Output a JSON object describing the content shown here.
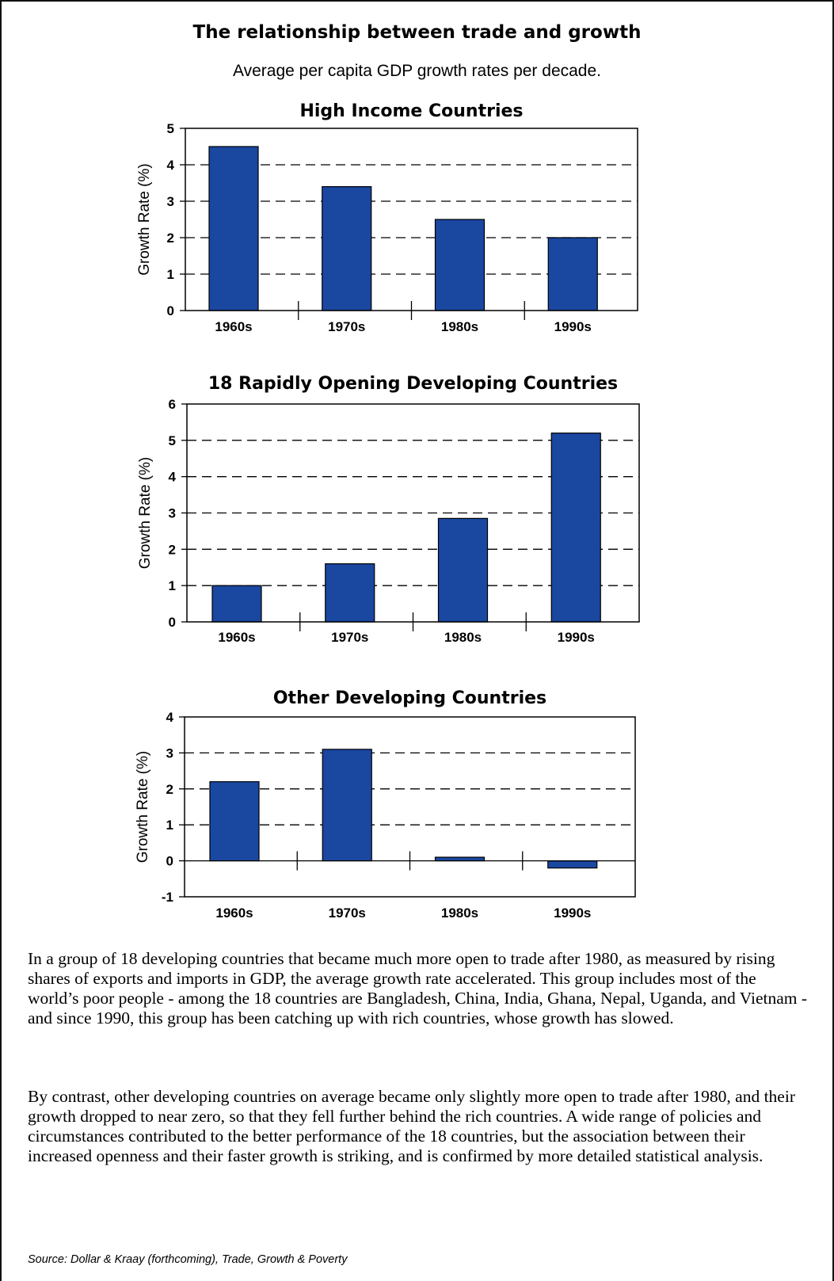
{
  "page": {
    "title": "The relationship between trade and growth",
    "subtitle": "Average per capita GDP growth rates per decade.",
    "paragraphs": [
      "In a group of 18 developing countries that became much more open to trade after 1980, as measured by rising shares of exports and imports in GDP, the average growth rate accelerated. This group includes most of the world’s poor people - among the 18 countries are Bangladesh, China, India, Ghana, Nepal, Uganda, and Vietnam - and since 1990, this group has been catching up with rich countries, whose growth has slowed.",
      "By contrast, other developing countries on average became only slightly more open to trade after 1980, and their growth dropped to near zero, so that they fell further behind the rich countries.  A wide range of policies and circumstances contributed to the better performance of the 18 countries, but the association between their increased openness and their faster growth is striking, and is confirmed by more detailed statistical analysis."
    ],
    "source": "Source: Dollar & Kraay (forthcoming), Trade, Growth & Poverty"
  },
  "colors": {
    "bar": "#1a47a0",
    "bar_outline": "#000000",
    "grid": "#000000"
  },
  "chart_data": [
    {
      "type": "bar",
      "title": "High Income Countries",
      "ylabel": "Growth Rate (%)",
      "xlabel": "",
      "categories": [
        "1960s",
        "1970s",
        "1980s",
        "1990s"
      ],
      "values": [
        4.5,
        3.4,
        2.5,
        2.0
      ],
      "ylim": [
        0,
        5
      ],
      "yticks": [
        "0",
        "1",
        "2",
        "3",
        "4",
        "5"
      ],
      "grid": "dashed horizontal",
      "legend": "none"
    },
    {
      "type": "bar",
      "title": "18 Rapidly Opening Developing Countries",
      "ylabel": "Growth Rate (%)",
      "xlabel": "",
      "categories": [
        "1960s",
        "1970s",
        "1980s",
        "1990s"
      ],
      "values": [
        1.0,
        1.6,
        2.85,
        5.2
      ],
      "ylim": [
        0,
        6
      ],
      "yticks": [
        "0",
        "1",
        "2",
        "3",
        "4",
        "5",
        "6"
      ],
      "grid": "dashed horizontal",
      "legend": "none"
    },
    {
      "type": "bar",
      "title": "Other Developing Countries",
      "ylabel": "Growth Rate (%)",
      "xlabel": "",
      "categories": [
        "1960s",
        "1970s",
        "1980s",
        "1990s"
      ],
      "values": [
        2.2,
        3.1,
        0.1,
        -0.2
      ],
      "ylim": [
        -1,
        4
      ],
      "yticks": [
        "-1",
        "0",
        "1",
        "2",
        "3",
        "4"
      ],
      "grid": "dashed horizontal",
      "legend": "none"
    }
  ]
}
